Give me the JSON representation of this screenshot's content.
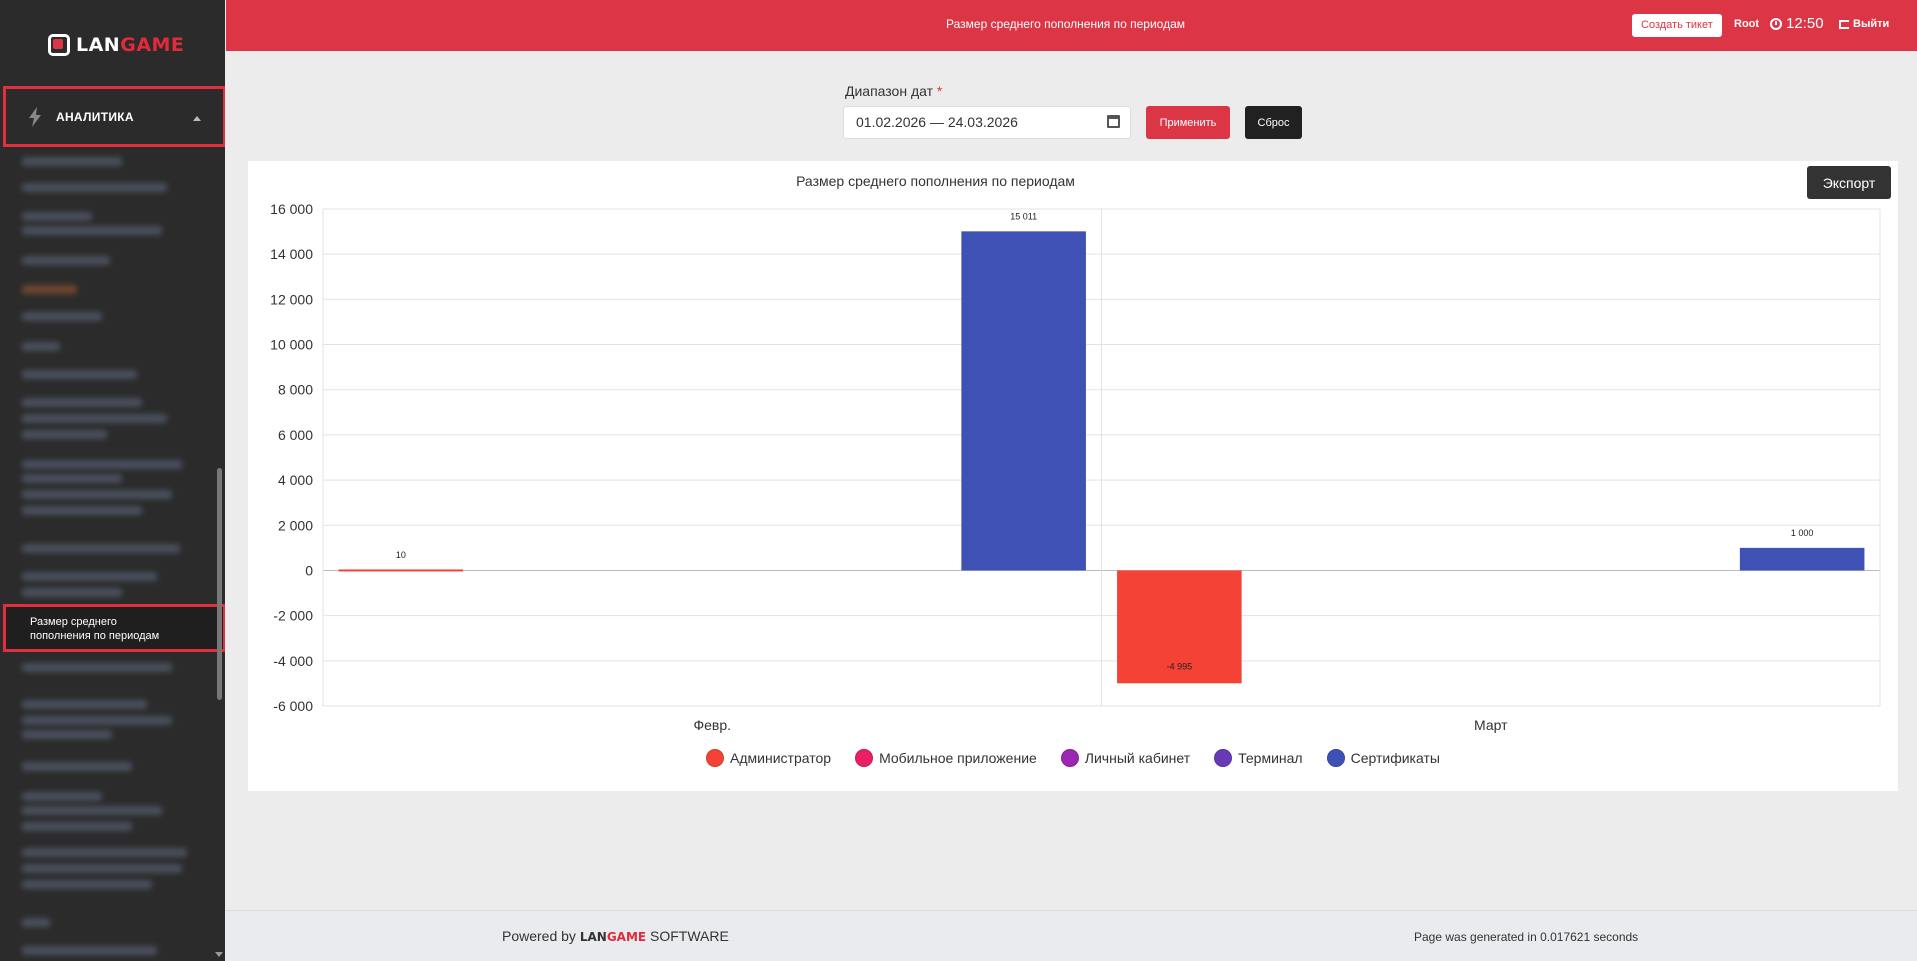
{
  "sidebar": {
    "logo_left": "LAN",
    "logo_right": "GAME",
    "section_label": "АНАЛИТИКА",
    "active_item": "Размер среднего пополнения по периодам"
  },
  "header": {
    "title": "Размер среднего пополнения по периодам",
    "ticket_label": "Создать тикет",
    "user": "Root",
    "time": "12:50",
    "logout_label": "Выйти"
  },
  "filter": {
    "label": "Диапазон дат",
    "required_mark": "*",
    "date_value": "01.02.2026 — 24.03.2026",
    "apply_label": "Применить",
    "reset_label": "Сброс"
  },
  "chart": {
    "export_label": "Экспорт"
  },
  "chart_data": {
    "type": "bar",
    "title": "Размер среднего пополнения по периодам",
    "categories": [
      "Февр.",
      "Март"
    ],
    "ylim": [
      -6000,
      16000
    ],
    "yticks": [
      16000,
      14000,
      12000,
      10000,
      8000,
      6000,
      4000,
      2000,
      0,
      -2000,
      -4000,
      -6000
    ],
    "ytick_labels": [
      "16 000",
      "14 000",
      "12 000",
      "10 000",
      "8 000",
      "6 000",
      "4 000",
      "2 000",
      "0",
      "-2 000",
      "-4 000",
      "-6 000"
    ],
    "grid": true,
    "legend_position": "bottom",
    "series": [
      {
        "name": "Администратор",
        "color": "#f44336",
        "values": [
          10,
          -4995
        ],
        "labels": [
          "10",
          "-4 995"
        ]
      },
      {
        "name": "Мобильное приложение",
        "color": "#e91e63",
        "values": [
          0,
          0
        ],
        "labels": [
          "",
          ""
        ]
      },
      {
        "name": "Личный кабинет",
        "color": "#9c27b0",
        "values": [
          0,
          0
        ],
        "labels": [
          "",
          ""
        ]
      },
      {
        "name": "Терминал",
        "color": "#673ab7",
        "values": [
          0,
          0
        ],
        "labels": [
          "",
          ""
        ]
      },
      {
        "name": "Сертификаты",
        "color": "#3f51b5",
        "values": [
          15011,
          1000
        ],
        "labels": [
          "15 011",
          "1 000"
        ]
      }
    ]
  },
  "footer": {
    "powered_prefix": "Powered by",
    "brand_left": "LAN",
    "brand_right": "GAME",
    "powered_suffix": "SOFTWARE",
    "generated": "Page was generated in 0.017621 seconds"
  }
}
